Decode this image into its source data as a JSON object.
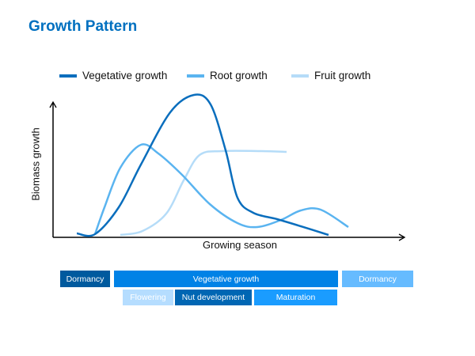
{
  "title": "Growth Pattern",
  "legend": [
    {
      "label": "Vegetative growth",
      "color": "#0a6ebd"
    },
    {
      "label": "Root  growth",
      "color": "#5ab4f0"
    },
    {
      "label": "Fruit  growth",
      "color": "#b5dcf8"
    }
  ],
  "axes": {
    "ylabel": "Biomass growth",
    "xlabel": "Growing season"
  },
  "timeline": {
    "row1": [
      {
        "label": "Dormancy",
        "color": "#005a9e"
      },
      {
        "label": "Vegetative growth",
        "color": "#0082e6"
      },
      {
        "label": "Dormancy",
        "color": "#66bbff"
      }
    ],
    "row2": [
      {
        "label": "Flowering",
        "color": "#b5ddff"
      },
      {
        "label": "Nut development",
        "color": "#0066b3"
      },
      {
        "label": "Maturation",
        "color": "#1a9cff"
      }
    ]
  }
}
